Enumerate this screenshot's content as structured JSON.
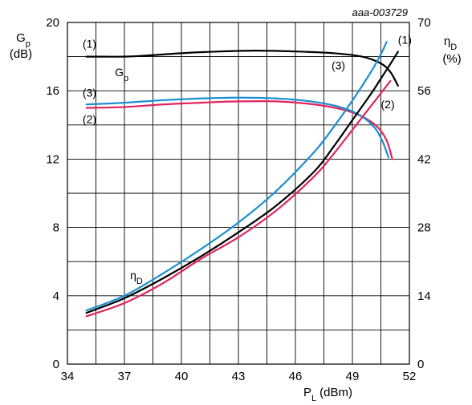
{
  "chart_data": {
    "type": "line",
    "code": "aaa-003729",
    "x_axis": {
      "label": "P",
      "label_sub": "L",
      "label_unit": "(dBm)",
      "range": [
        34,
        52
      ],
      "ticks": [
        34,
        37,
        40,
        43,
        46,
        49,
        52
      ]
    },
    "y_left": {
      "label": "G",
      "label_sub": "p",
      "label_unit": "(dB)",
      "range": [
        0,
        20
      ],
      "ticks": [
        0,
        4,
        8,
        12,
        16,
        20
      ]
    },
    "y_right": {
      "label": "η",
      "label_sub": "D",
      "label_unit": "(%)",
      "range": [
        0,
        70
      ],
      "ticks": [
        0,
        14,
        28,
        42,
        56,
        70
      ]
    },
    "grid": true,
    "colors": {
      "black": "#000000",
      "blue": "#1a8fd0",
      "red": "#e0245e"
    },
    "series": [
      {
        "name": "(1)",
        "quantity": "Gp",
        "axis": "left",
        "color": "black",
        "x": [
          35,
          37,
          38,
          40,
          42,
          44,
          46,
          48,
          49.5,
          50.5,
          51,
          51.4
        ],
        "y": [
          18.0,
          18.0,
          18.05,
          18.2,
          18.3,
          18.35,
          18.3,
          18.2,
          18.0,
          17.6,
          17.1,
          16.3
        ]
      },
      {
        "name": "(2)",
        "quantity": "Gp",
        "axis": "left",
        "color": "red",
        "x": [
          35,
          37,
          39,
          41,
          43,
          45,
          47,
          48.5,
          49.5,
          50.3,
          50.8,
          51.1
        ],
        "y": [
          15.0,
          15.05,
          15.2,
          15.3,
          15.38,
          15.38,
          15.2,
          14.9,
          14.5,
          13.9,
          13.1,
          12.0
        ]
      },
      {
        "name": "(3)",
        "quantity": "Gp",
        "axis": "left",
        "color": "blue",
        "x": [
          35,
          37,
          39,
          41,
          43,
          45,
          47,
          48.5,
          49.5,
          50.2,
          50.6,
          50.9
        ],
        "y": [
          15.2,
          15.3,
          15.45,
          15.55,
          15.6,
          15.55,
          15.35,
          15.0,
          14.5,
          13.8,
          13.0,
          12.1
        ]
      },
      {
        "name": "(1)",
        "quantity": "ηD",
        "axis": "right",
        "color": "black",
        "x": [
          35,
          37,
          39,
          41,
          43,
          45,
          47,
          48,
          49,
          50,
          50.5,
          51,
          51.4
        ],
        "y": [
          10.5,
          13.5,
          17.5,
          22.0,
          27.0,
          32.5,
          39.5,
          44.5,
          50.0,
          55.5,
          58.5,
          61.5,
          64.0
        ]
      },
      {
        "name": "(2)",
        "quantity": "ηD",
        "axis": "right",
        "color": "red",
        "x": [
          35,
          37,
          39,
          41,
          43,
          45,
          47,
          48,
          49,
          50,
          50.5,
          51
        ],
        "y": [
          9.8,
          12.5,
          16.5,
          21.5,
          26.0,
          31.5,
          38.5,
          43.0,
          48.0,
          53.0,
          55.5,
          58.0
        ]
      },
      {
        "name": "(3)",
        "quantity": "ηD",
        "axis": "right",
        "color": "blue",
        "x": [
          35,
          37,
          39,
          41,
          43,
          45,
          47,
          48,
          49,
          50,
          50.5,
          50.8
        ],
        "y": [
          11.0,
          14.0,
          18.5,
          23.5,
          29.0,
          35.5,
          43.5,
          48.5,
          54.0,
          60.0,
          63.5,
          66.0
        ]
      }
    ],
    "annotations": [
      {
        "text": "(1)",
        "x": 34.8,
        "y_left": 18.75
      },
      {
        "text": "(3)",
        "x": 34.8,
        "y_left": 15.9
      },
      {
        "text": "(2)",
        "x": 34.8,
        "y_left": 14.35
      },
      {
        "text": "G",
        "sub": "p",
        "x": 36.5,
        "y_left": 17.1
      },
      {
        "text": "η",
        "sub": "D",
        "x": 37.3,
        "y_left": 5.2
      },
      {
        "text": "(3)",
        "x": 47.9,
        "y_left": 17.5
      },
      {
        "text": "(1)",
        "x": 51.4,
        "y_left": 19.0
      },
      {
        "text": "(2)",
        "x": 50.5,
        "y_left": 15.2
      }
    ]
  }
}
